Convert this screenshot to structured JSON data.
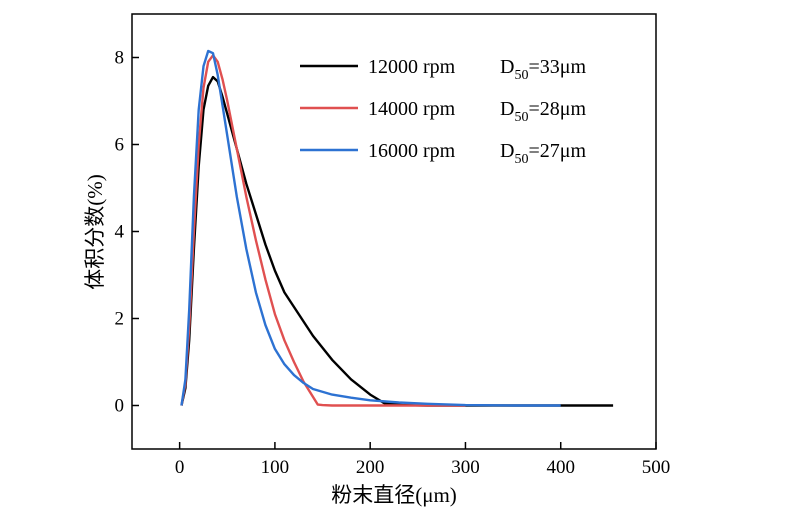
{
  "chart_data": {
    "type": "line",
    "title": "",
    "xlabel": "粉末直径(μm)",
    "ylabel": "体积分数(%)",
    "xlim": [
      -50,
      500
    ],
    "ylim": [
      -1,
      9
    ],
    "xticks": [
      0,
      100,
      200,
      300,
      400,
      500
    ],
    "yticks": [
      0,
      2,
      4,
      6,
      8
    ],
    "legend_position": "top-right",
    "series": [
      {
        "name": "12000 rpm",
        "d50_prefix": "D",
        "d50_sub": "50",
        "d50_value": "=33μm",
        "color": "#000000",
        "x": [
          2,
          6,
          10,
          15,
          20,
          25,
          30,
          35,
          40,
          45,
          50,
          60,
          70,
          80,
          90,
          100,
          110,
          125,
          140,
          160,
          180,
          200,
          215,
          235,
          260,
          300,
          350,
          400,
          455
        ],
        "y": [
          0,
          0.4,
          1.5,
          3.6,
          5.5,
          6.8,
          7.35,
          7.55,
          7.45,
          7.1,
          6.7,
          5.9,
          5.1,
          4.4,
          3.7,
          3.1,
          2.6,
          2.1,
          1.6,
          1.05,
          0.6,
          0.25,
          0.05,
          0.01,
          0,
          0,
          0,
          0,
          0
        ]
      },
      {
        "name": "14000 rpm",
        "d50_prefix": "D",
        "d50_sub": "50",
        "d50_value": "=28μm",
        "color": "#e05050",
        "x": [
          2,
          6,
          10,
          15,
          20,
          25,
          30,
          35,
          40,
          45,
          50,
          60,
          70,
          80,
          90,
          100,
          110,
          120,
          130,
          145,
          150,
          160,
          200,
          250,
          300
        ],
        "y": [
          0,
          0.5,
          1.8,
          4.0,
          6.0,
          7.3,
          7.9,
          8.05,
          7.9,
          7.5,
          7.0,
          5.9,
          4.8,
          3.8,
          2.9,
          2.1,
          1.5,
          1.0,
          0.55,
          0.02,
          0.01,
          0,
          0,
          0,
          0
        ]
      },
      {
        "name": "16000 rpm",
        "d50_prefix": "D",
        "d50_sub": "50",
        "d50_value": "=27μm",
        "color": "#2d72d2",
        "x": [
          2,
          6,
          10,
          15,
          20,
          25,
          30,
          35,
          40,
          45,
          50,
          60,
          70,
          80,
          90,
          100,
          110,
          120,
          130,
          140,
          160,
          180,
          200,
          230,
          260,
          300,
          350,
          400
        ],
        "y": [
          0,
          0.6,
          2.2,
          4.8,
          6.8,
          7.8,
          8.15,
          8.1,
          7.6,
          6.9,
          6.2,
          4.8,
          3.6,
          2.6,
          1.85,
          1.3,
          0.95,
          0.7,
          0.52,
          0.38,
          0.25,
          0.18,
          0.12,
          0.07,
          0.04,
          0.01,
          0,
          0
        ]
      }
    ]
  }
}
